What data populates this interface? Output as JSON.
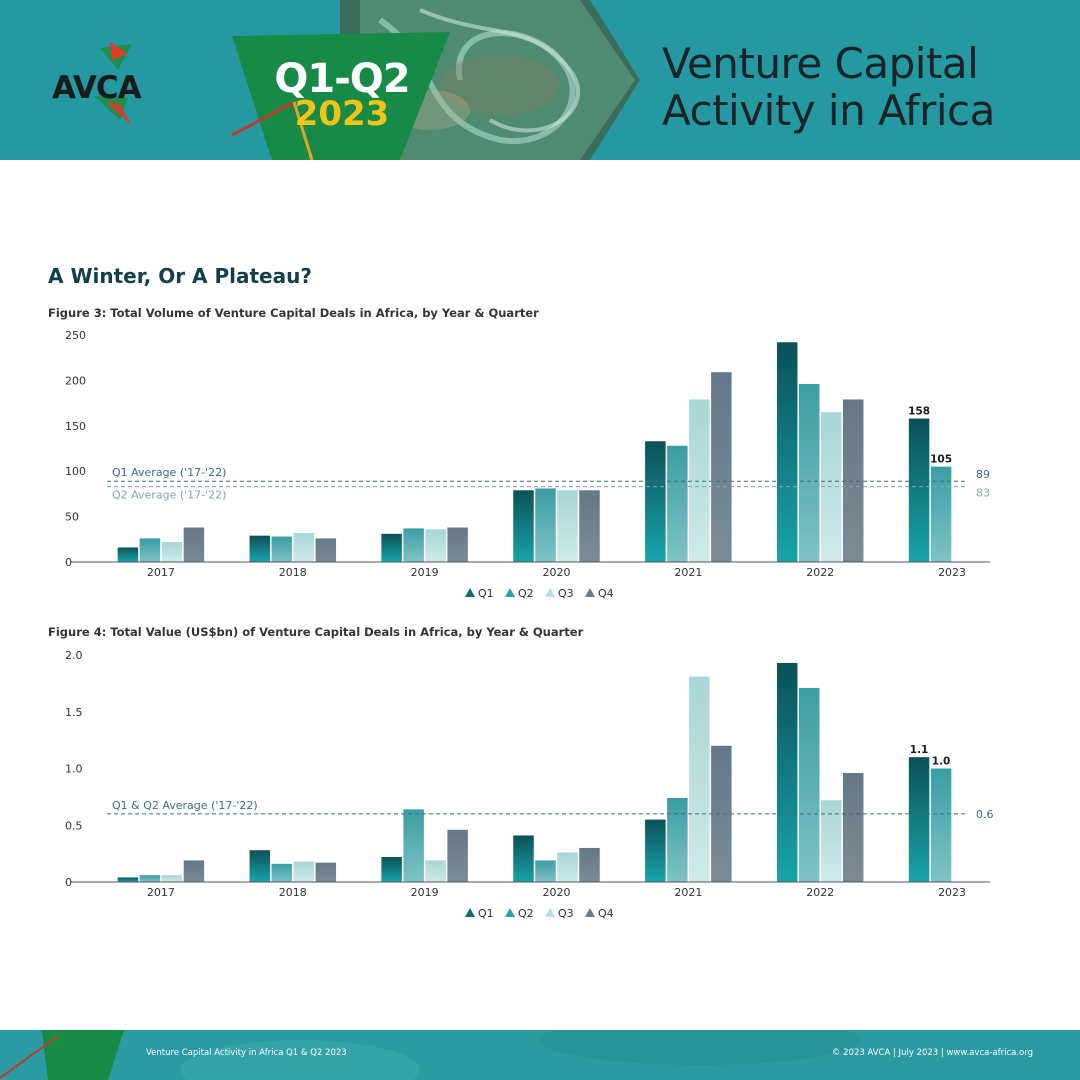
{
  "header": {
    "logo_text": "AVCA",
    "badge_line1": "Q1-Q2",
    "badge_line2": "2023",
    "title_line1": "Venture Capital",
    "title_line2": "Activity in Africa"
  },
  "section_title": "A Winter, Or A Plateau?",
  "figures": {
    "fig3_title": "Figure 3: Total Volume of Venture Capital Deals in Africa, by Year & Quarter",
    "fig4_title": "Figure 4: Total Value (US$bn) of Venture Capital Deals in Africa, by Year & Quarter"
  },
  "footer": {
    "left": "Venture Capital Activity in Africa Q1 & Q2 2023",
    "right": "© 2023 AVCA  |  July 2023  |  www.avca-africa.org"
  },
  "colors": {
    "Q1": "#0e6b73",
    "Q2": "#2aa1a5",
    "Q3": "#b2dcdd",
    "Q4": "#6b7d8a",
    "header_bg": "#2499a1",
    "badge_green": "#178a48",
    "text_dark": "#133f48"
  },
  "chart_data": [
    {
      "type": "bar",
      "categories": [
        "2017",
        "2018",
        "2019",
        "2020",
        "2021",
        "2022",
        "2023"
      ],
      "series": [
        {
          "name": "Q1",
          "values": [
            16,
            29,
            31,
            79,
            133,
            242,
            158
          ]
        },
        {
          "name": "Q2",
          "values": [
            26,
            28,
            37,
            81,
            128,
            196,
            105
          ]
        },
        {
          "name": "Q3",
          "values": [
            22,
            32,
            36,
            79,
            179,
            165,
            null
          ]
        },
        {
          "name": "Q4",
          "values": [
            38,
            26,
            38,
            79,
            209,
            179,
            null
          ]
        }
      ],
      "data_labels": [
        {
          "series": "Q1",
          "category": "2023",
          "text": "158"
        },
        {
          "series": "Q2",
          "category": "2023",
          "text": "105"
        }
      ],
      "reference_lines": [
        {
          "label": "Q1 Average ('17-'22)",
          "value": 89,
          "value_label": "89"
        },
        {
          "label": "Q2 Average ('17-'22)",
          "value": 83,
          "value_label": "83"
        }
      ],
      "yticks": [
        "0",
        "50",
        "100",
        "150",
        "200",
        "250"
      ],
      "ylim": [
        0,
        250
      ],
      "legend": [
        "Q1",
        "Q2",
        "Q3",
        "Q4"
      ],
      "legend_position": "bottom-center",
      "grid": false
    },
    {
      "type": "bar",
      "categories": [
        "2017",
        "2018",
        "2019",
        "2020",
        "2021",
        "2022",
        "2023"
      ],
      "series": [
        {
          "name": "Q1",
          "values": [
            0.04,
            0.28,
            0.22,
            0.41,
            0.55,
            1.93,
            1.1
          ]
        },
        {
          "name": "Q2",
          "values": [
            0.06,
            0.16,
            0.64,
            0.19,
            0.74,
            1.71,
            1.0
          ]
        },
        {
          "name": "Q3",
          "values": [
            0.06,
            0.18,
            0.19,
            0.26,
            1.81,
            0.72,
            null
          ]
        },
        {
          "name": "Q4",
          "values": [
            0.19,
            0.17,
            0.46,
            0.3,
            1.2,
            0.96,
            null
          ]
        }
      ],
      "data_labels": [
        {
          "series": "Q1",
          "category": "2023",
          "text": "1.1"
        },
        {
          "series": "Q2",
          "category": "2023",
          "text": "1.0"
        }
      ],
      "reference_lines": [
        {
          "label": "Q1 & Q2 Average ('17-'22)",
          "value": 0.6,
          "value_label": "0.6"
        }
      ],
      "yticks": [
        "0",
        "0.5",
        "1.0",
        "1.5",
        "2.0"
      ],
      "ylim": [
        0,
        2.0
      ],
      "legend": [
        "Q1",
        "Q2",
        "Q3",
        "Q4"
      ],
      "legend_position": "bottom-center",
      "grid": false
    }
  ]
}
